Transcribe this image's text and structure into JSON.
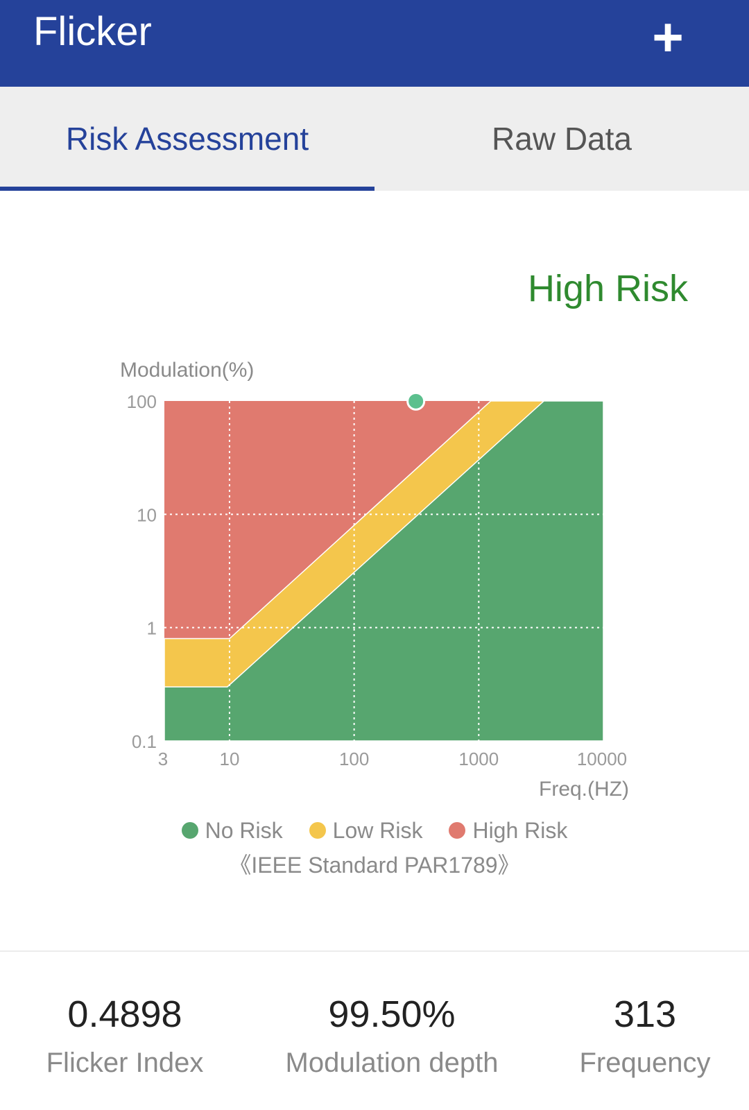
{
  "app_bar": {
    "title": "Flicker",
    "add_icon": "plus-icon"
  },
  "tabs": [
    {
      "label": "Risk Assessment",
      "active": true
    },
    {
      "label": "Raw Data",
      "active": false
    }
  ],
  "risk_status": "High Risk",
  "colors": {
    "primary": "#25429a",
    "no_risk": "#57a66f",
    "low_risk": "#f4c64c",
    "high_risk": "#e07a6f",
    "point": "#5cc08e",
    "status_text": "#2f8a2f"
  },
  "chart_data": {
    "type": "area",
    "ylabel": "Modulation(%)",
    "xlabel": "Freq.(HZ)",
    "x_scale": "log",
    "y_scale": "log",
    "xlim": [
      3,
      10000
    ],
    "ylim": [
      0.1,
      100
    ],
    "x_ticks": [
      "3",
      "10",
      "100",
      "1000",
      "10000"
    ],
    "y_ticks": [
      "100",
      "10",
      "1",
      "0.1"
    ],
    "grid": true,
    "regions": [
      {
        "name": "No Risk",
        "boundary_upper": [
          [
            3,
            0.3
          ],
          [
            9.6,
            0.3
          ],
          [
            3333,
            100
          ]
        ]
      },
      {
        "name": "Low Risk",
        "boundary_upper": [
          [
            3,
            0.8
          ],
          [
            10,
            0.8
          ],
          [
            1250,
            100
          ]
        ]
      },
      {
        "name": "High Risk",
        "boundary_upper": [
          [
            3,
            100
          ],
          [
            10000,
            100
          ]
        ]
      }
    ],
    "point": {
      "x": 313,
      "y": 99.5
    },
    "legend": [
      "No Risk",
      "Low Risk",
      "High Risk"
    ],
    "legend_position": "bottom",
    "standard_note": "《IEEE Standard PAR1789》"
  },
  "stats": [
    {
      "value": "0.4898",
      "label": "Flicker Index"
    },
    {
      "value": "99.50%",
      "label": "Modulation depth"
    },
    {
      "value": "313",
      "label": "Frequency"
    }
  ]
}
